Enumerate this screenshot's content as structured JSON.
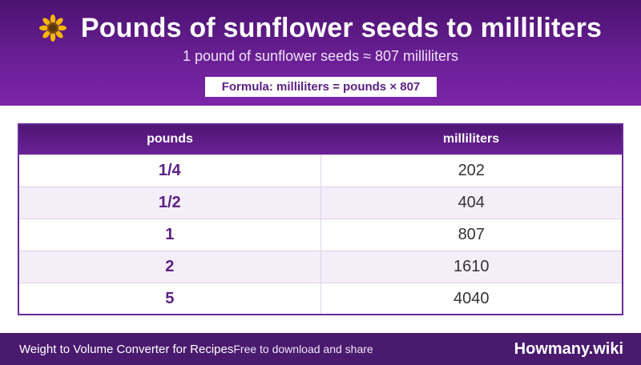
{
  "header": {
    "icon": "sunflower-icon",
    "title": "Pounds of sunflower seeds to milliliters",
    "subtitle": "1 pound of sunflower seeds ≈ 807 milliliters",
    "formula": "Formula: milliliters = pounds × 807"
  },
  "table": {
    "headers": [
      "pounds",
      "milliliters"
    ],
    "rows": [
      [
        "1/4",
        "202"
      ],
      [
        "1/2",
        "404"
      ],
      [
        "1",
        "807"
      ],
      [
        "2",
        "1610"
      ],
      [
        "5",
        "4040"
      ]
    ]
  },
  "footer": {
    "left": "Weight to Volume Converter for Recipes",
    "tagline": "Free to download and share",
    "brand": "Howmany.wiki"
  },
  "colors": {
    "header_purple": "#6a1f95",
    "footer_purple": "#4a1a6e",
    "accent_text": "#5b1f86"
  }
}
